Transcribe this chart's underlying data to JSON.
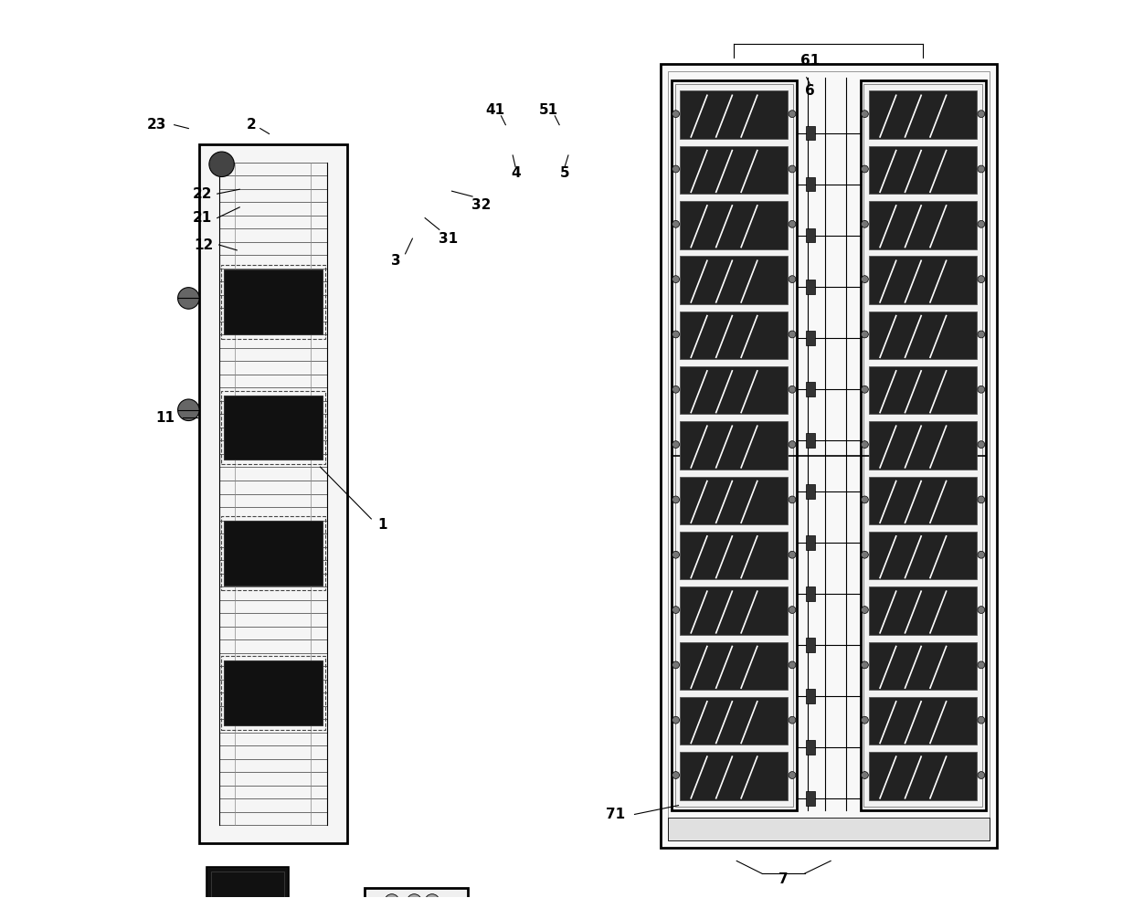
{
  "bg_color": "#ffffff",
  "line_color": "#000000",
  "dark_color": "#1a1a1a",
  "gray_color": "#888888",
  "light_gray": "#cccccc",
  "fig_width": 12.4,
  "fig_height": 9.83
}
